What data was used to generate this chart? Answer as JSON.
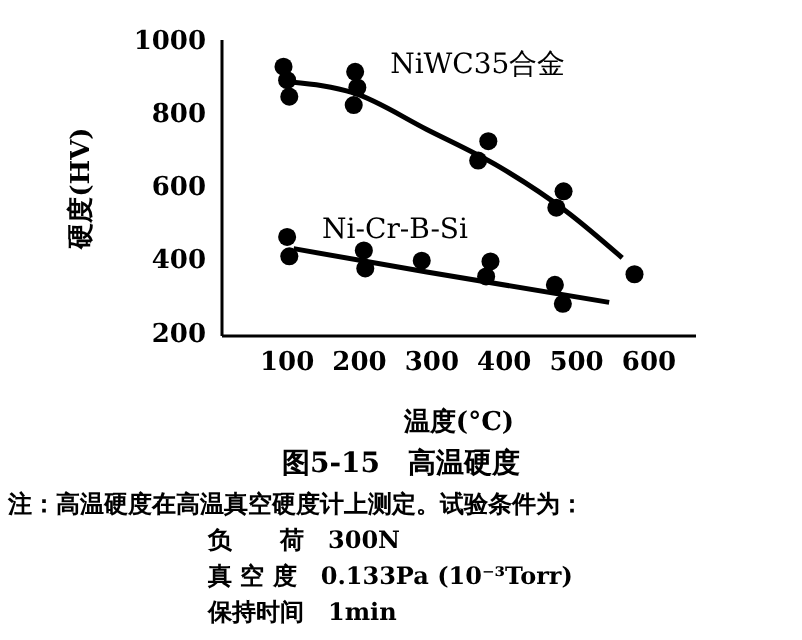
{
  "chart_data": {
    "type": "scatter",
    "title": "图5-15　高温硬度",
    "xlabel": "温度(°C)",
    "ylabel": "硬度(HV)",
    "xlim": [
      10,
      665
    ],
    "xticks": [
      100,
      200,
      300,
      400,
      500,
      600
    ],
    "ylim": [
      190,
      1000
    ],
    "yticks": [
      200,
      400,
      600,
      800,
      1000
    ],
    "grid": false,
    "legend": false,
    "line_style": "solid",
    "series": [
      {
        "name": "NiWC35合金",
        "marker": "circle",
        "color": "#000000",
        "x": [
          95,
          100,
          103,
          194,
          197,
          192,
          364,
          378,
          472,
          482,
          580
        ],
        "values": [
          927,
          890,
          845,
          913,
          870,
          822,
          670,
          723,
          541,
          586,
          359
        ]
      },
      {
        "type": "line",
        "marker": "none",
        "color": "#000000",
        "x": [
          105,
          192,
          293,
          394,
          486,
          563
        ],
        "values": [
          885,
          855,
          755,
          652,
          531,
          404
        ]
      },
      {
        "name": "Ni-Cr-B-Si",
        "marker": "circle",
        "color": "#000000",
        "x": [
          100,
          103,
          206,
          208,
          286,
          375,
          381,
          470,
          481
        ],
        "values": [
          461,
          408,
          424,
          375,
          396,
          353,
          394,
          330,
          278
        ]
      },
      {
        "type": "line",
        "marker": "none",
        "color": "#000000",
        "x": [
          109,
          293,
          545
        ],
        "values": [
          429,
          365,
          282
        ]
      }
    ],
    "annotations": [
      "注：高温硬度在高温真空硬度计上测定。试验条件为：",
      "负　　荷　300N",
      "真 空 度　0.133Pa (10⁻³Torr)",
      "保持时间　1min"
    ]
  }
}
